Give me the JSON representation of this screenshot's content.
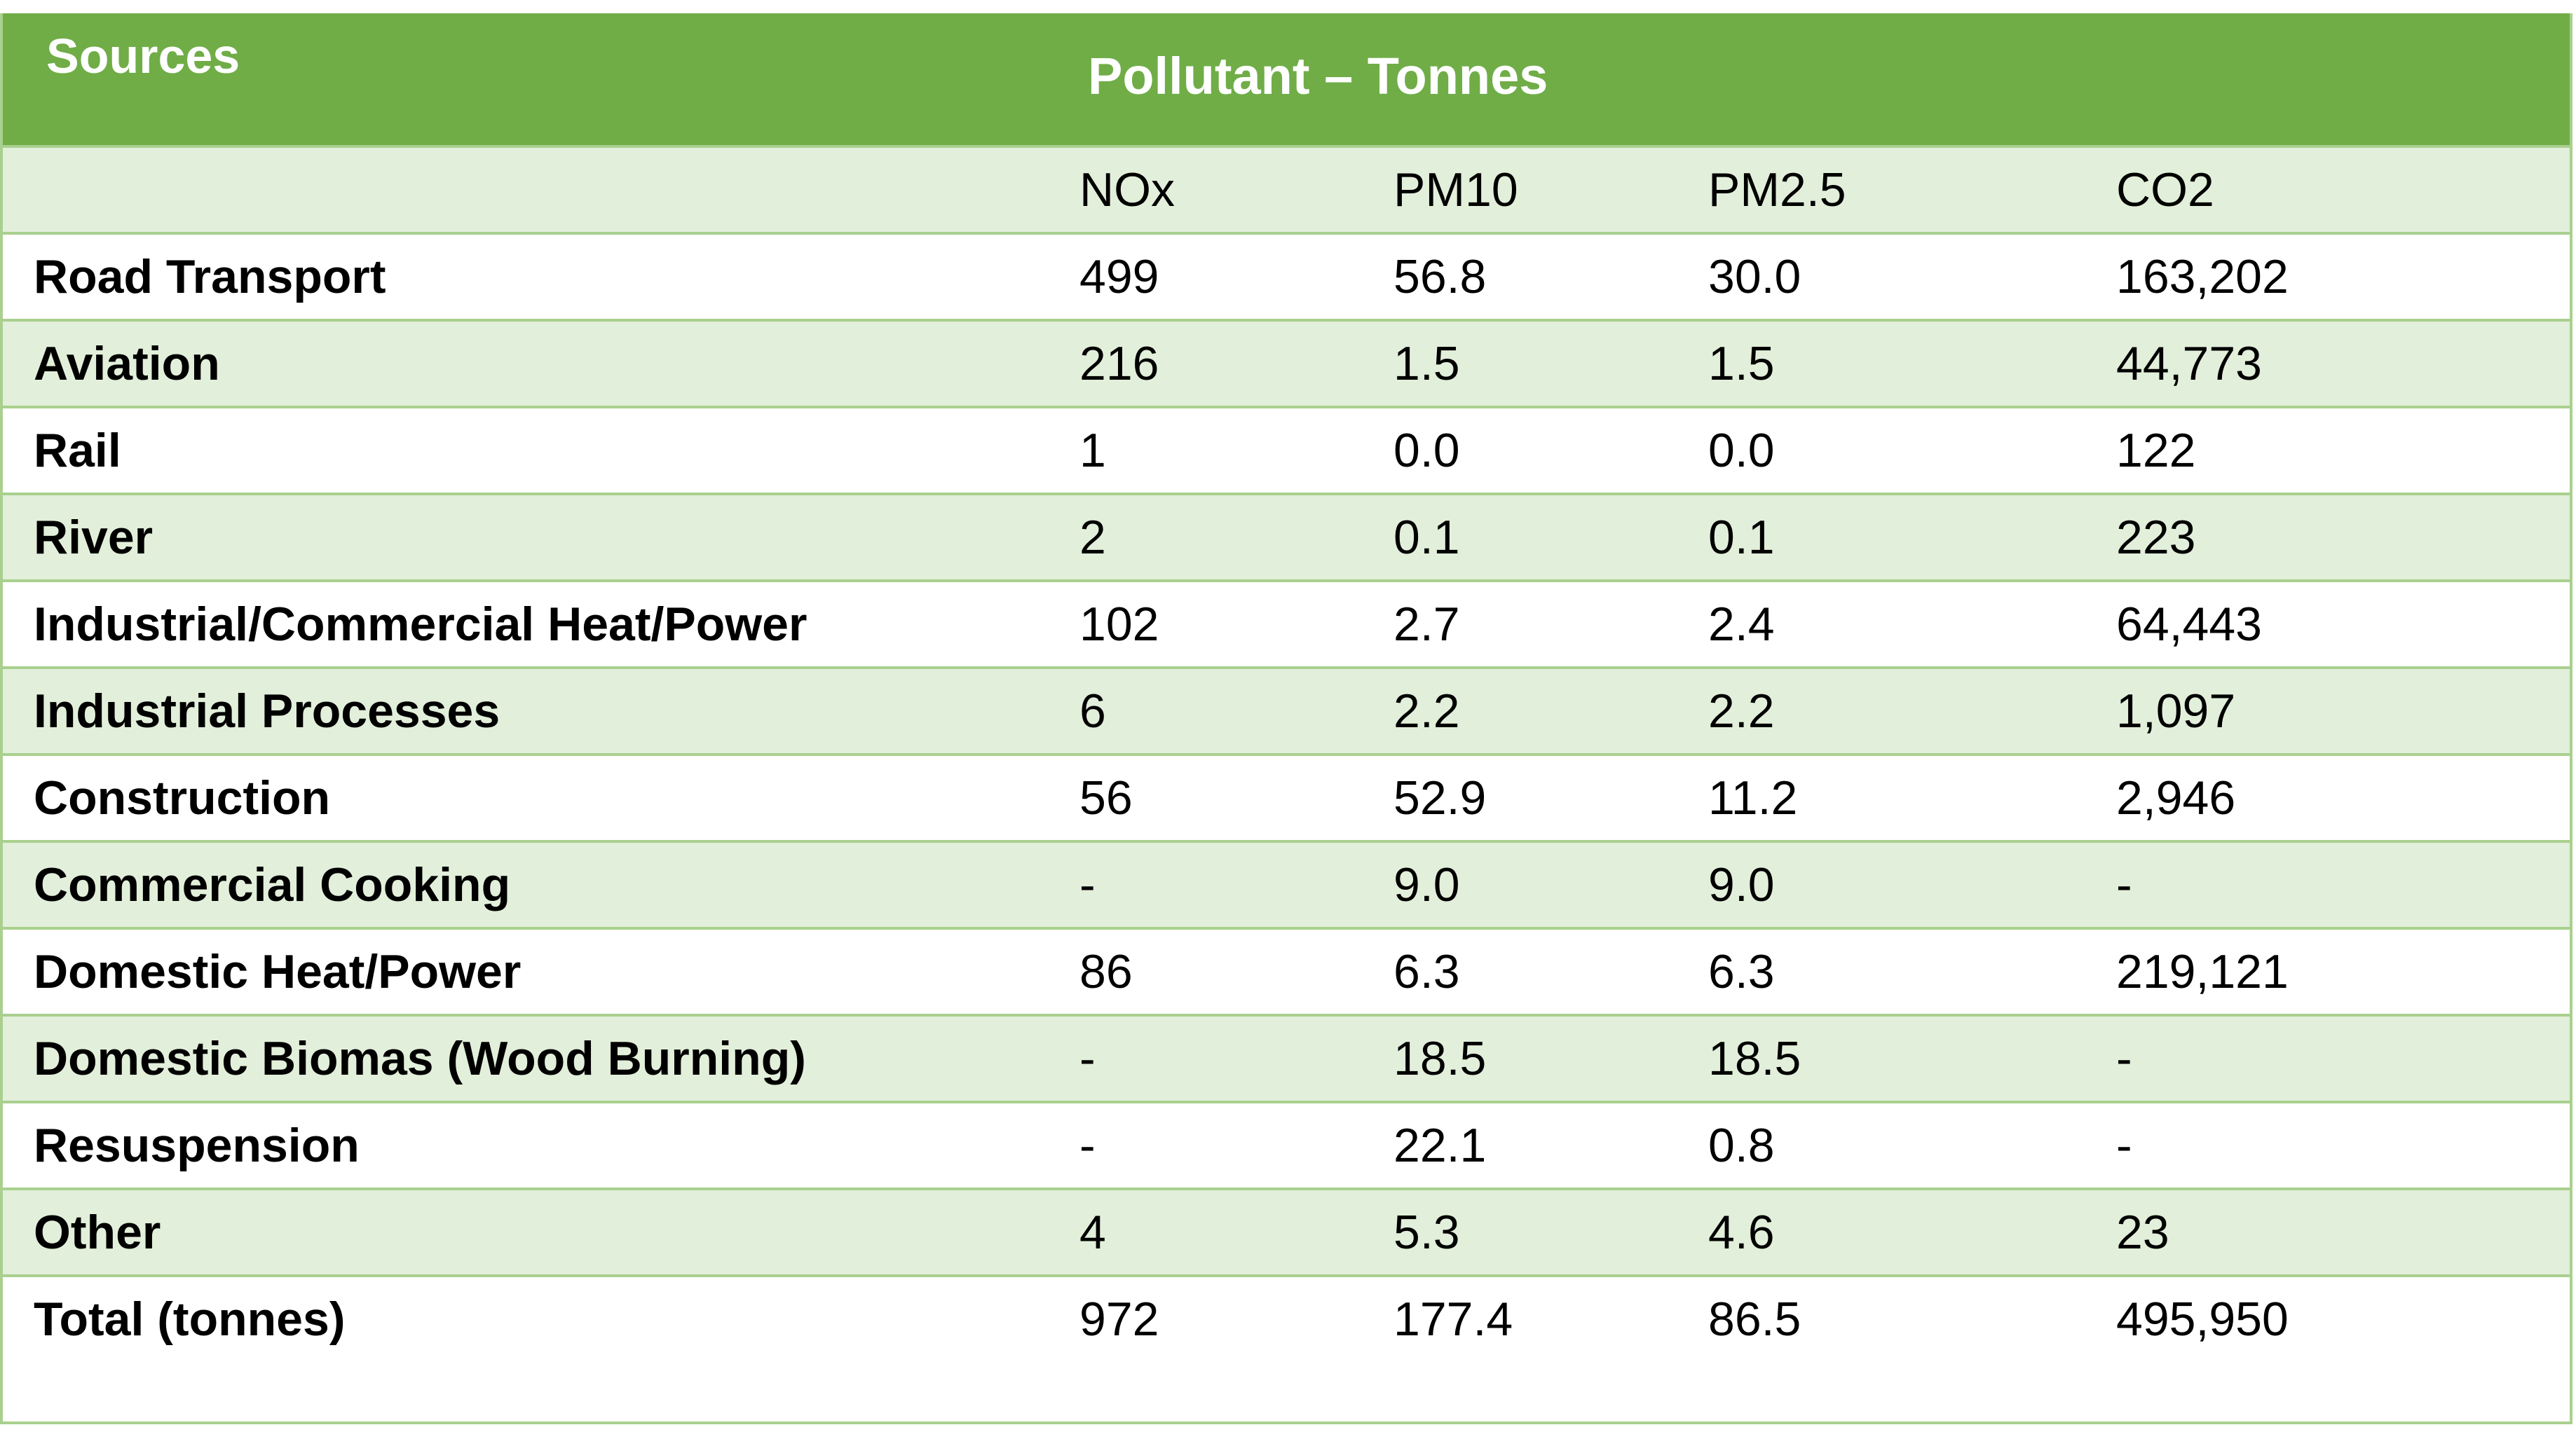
{
  "header": {
    "sources": "Sources",
    "pollutant": "Pollutant – Tonnes"
  },
  "columns": [
    "NOx",
    "PM10",
    "PM2.5",
    "CO2"
  ],
  "rows": [
    {
      "source": "Road Transport",
      "nox": "499",
      "pm10": "56.8",
      "pm25": "30.0",
      "co2": "163,202"
    },
    {
      "source": "Aviation",
      "nox": "216",
      "pm10": "1.5",
      "pm25": "1.5",
      "co2": "44,773"
    },
    {
      "source": "Rail",
      "nox": "1",
      "pm10": "0.0",
      "pm25": "0.0",
      "co2": "122"
    },
    {
      "source": "River",
      "nox": "2",
      "pm10": "0.1",
      "pm25": "0.1",
      "co2": "223"
    },
    {
      "source": "Industrial/Commercial Heat/Power",
      "nox": "102",
      "pm10": "2.7",
      "pm25": "2.4",
      "co2": "64,443"
    },
    {
      "source": "Industrial Processes",
      "nox": "6",
      "pm10": "2.2",
      "pm25": "2.2",
      "co2": "1,097"
    },
    {
      "source": "Construction",
      "nox": "56",
      "pm10": "52.9",
      "pm25": "11.2",
      "co2": "2,946"
    },
    {
      "source": "Commercial Cooking",
      "nox": "-",
      "pm10": "9.0",
      "pm25": "9.0",
      "co2": "-"
    },
    {
      "source": "Domestic Heat/Power",
      "nox": "86",
      "pm10": "6.3",
      "pm25": "6.3",
      "co2": "219,121"
    },
    {
      "source": "Domestic Biomas (Wood Burning)",
      "nox": "-",
      "pm10": "18.5",
      "pm25": "18.5",
      "co2": "-"
    },
    {
      "source": "Resuspension",
      "nox": "-",
      "pm10": "22.1",
      "pm25": "0.8",
      "co2": "-"
    },
    {
      "source": "Other",
      "nox": "4",
      "pm10": "5.3",
      "pm25": "4.6",
      "co2": "23"
    },
    {
      "source": "Total (tonnes)",
      "nox": "972",
      "pm10": "177.4",
      "pm25": "86.5",
      "co2": "495,950"
    }
  ],
  "colors": {
    "header_bg": "#70ad47",
    "band": "#e2efda",
    "border": "#a9d08e"
  }
}
